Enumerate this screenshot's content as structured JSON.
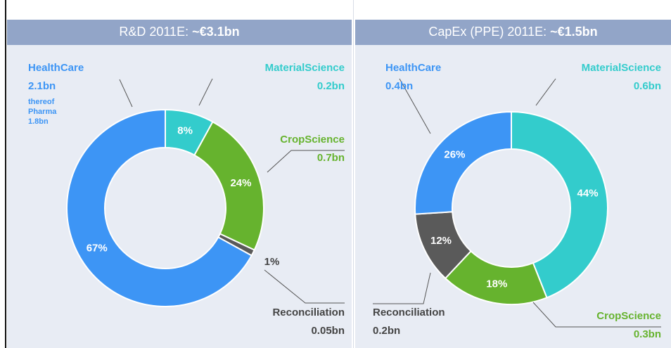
{
  "chart_data": [
    {
      "type": "donut",
      "title": "R&D 2011E:",
      "total": "~€3.1bn",
      "categories": [
        "MaterialScience",
        "CropScience",
        "Reconciliation",
        "HealthCare"
      ],
      "values": [
        8,
        24,
        1,
        67
      ],
      "value_labels": [
        "8%",
        "24%",
        "1%",
        "67%"
      ],
      "amounts": [
        "0.2bn",
        "0.7bn",
        "0.05bn",
        "2.1bn"
      ],
      "colors": [
        "#33cccc",
        "#66b32e",
        "#5a5a5a",
        "#3d95f5"
      ],
      "note": [
        "thereof",
        "Pharma",
        "1.8bn"
      ]
    },
    {
      "type": "donut",
      "title": "CapEx (PPE) 2011E:",
      "total": "~€1.5bn",
      "categories": [
        "MaterialScience",
        "CropScience",
        "Reconciliation",
        "HealthCare"
      ],
      "values": [
        44,
        18,
        12,
        26
      ],
      "value_labels": [
        "44%",
        "18%",
        "12%",
        "26%"
      ],
      "amounts": [
        "0.6bn",
        "0.3bn",
        "0.2bn",
        "0.4bn"
      ],
      "colors": [
        "#33cccc",
        "#66b32e",
        "#5a5a5a",
        "#3d95f5"
      ]
    }
  ]
}
